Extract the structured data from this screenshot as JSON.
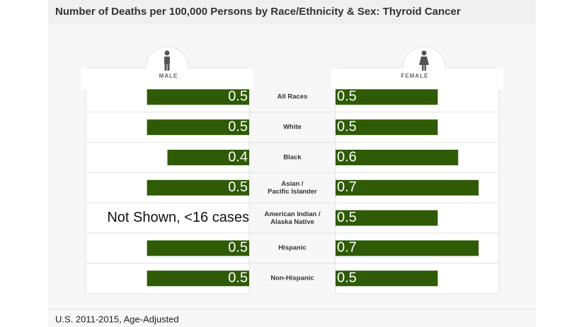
{
  "chart_data": {
    "type": "butterfly",
    "title": "Number of Deaths per 100,000 Persons by Race/Ethnicity & Sex: Thyroid Cancer",
    "categories": [
      "All Races",
      "White",
      "Black",
      "Asian /\nPacific Islander",
      "American Indian /\nAlaska Native",
      "Hispanic",
      "Non-Hispanic"
    ],
    "series": [
      {
        "name": "MALE",
        "color": "#2f5a06",
        "values": [
          0.5,
          0.5,
          0.4,
          0.5,
          null,
          0.5,
          0.5
        ],
        "value_labels": [
          "0.5",
          "0.5",
          "0.4",
          "0.5",
          "Not Shown, <16 cases",
          "0.5",
          "0.5"
        ]
      },
      {
        "name": "FEMALE",
        "color": "#2f5a06",
        "values": [
          0.5,
          0.5,
          0.6,
          0.7,
          0.5,
          0.7,
          0.5
        ]
      }
    ],
    "xlim": [
      0,
      0.8
    ],
    "footnote": "U.S. 2011-2015, Age-Adjusted"
  }
}
